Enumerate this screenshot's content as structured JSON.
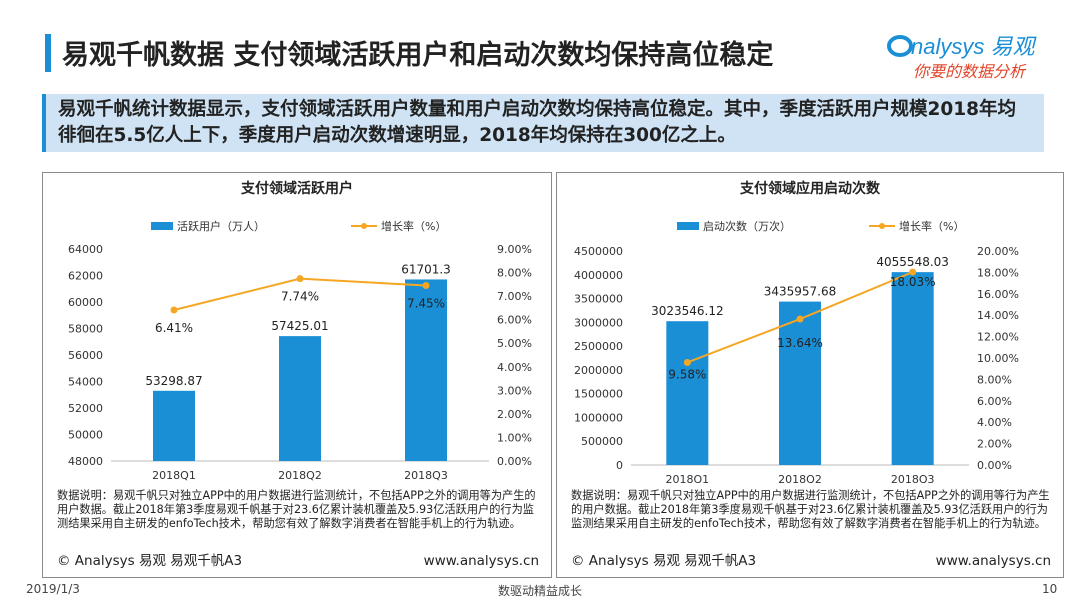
{
  "header": {
    "title": "易观千帆数据  支付领域活跃用户和启动次数均保持高位稳定",
    "logo_text": "nalysys 易观",
    "logo_slogan": "你要的数据分析"
  },
  "summary": "易观千帆统计数据显示，支付领域活跃用户数量和用户启动次数均保持高位稳定。其中，季度活跃用户规模2018年均徘徊在5.5亿人上下，季度用户启动次数增速明显，2018年均保持在300亿之上。",
  "colors": {
    "bar": "#1a8fd6",
    "line": "#f5a623",
    "accent": "#1a8fd6"
  },
  "chart_data": [
    {
      "type": "bar",
      "title": "支付领域活跃用户",
      "categories": [
        "2018Q1",
        "2018Q2",
        "2018Q3"
      ],
      "series": [
        {
          "name": "活跃用户（万人）",
          "type": "bar",
          "axis": "left",
          "values": [
            53298.87,
            57425.01,
            61701.3
          ]
        },
        {
          "name": "增长率（%）",
          "type": "line",
          "axis": "right",
          "values": [
            6.41,
            7.74,
            7.45
          ]
        }
      ],
      "value_labels": [
        "53298.87",
        "57425.01",
        "61701.3"
      ],
      "rate_labels": [
        "6.41%",
        "7.74%",
        "7.45%"
      ],
      "ylim": [
        48000,
        64000
      ],
      "yticks": [
        "64000",
        "62000",
        "60000",
        "58000",
        "56000",
        "54000",
        "52000",
        "50000",
        "48000"
      ],
      "y2lim": [
        0,
        9
      ],
      "y2ticks": [
        "9.00%",
        "8.00%",
        "7.00%",
        "6.00%",
        "5.00%",
        "4.00%",
        "3.00%",
        "2.00%",
        "1.00%",
        "0.00%"
      ],
      "legend_position": "top",
      "note": "数据说明：易观千帆只对独立APP中的用户数据进行监测统计，不包括APP之外的调用等为产生的用户数据。截止2018年第3季度易观千帆基于对23.6亿累计装机覆盖及5.93亿活跃用户的行为监测结果采用自主研发的enfoTech技术，帮助您有效了解数字消费者在智能手机上的行为轨迹。",
      "footer_left": "© Analysys 易观 易观千帆A3",
      "footer_right": "www.analysys.cn"
    },
    {
      "type": "bar",
      "title": "支付领域应用启动次数",
      "categories": [
        "2018Q1",
        "2018Q2",
        "2018Q3"
      ],
      "series": [
        {
          "name": "启动次数（万次）",
          "type": "bar",
          "axis": "left",
          "values": [
            3023546.12,
            3435957.68,
            4055548.03
          ]
        },
        {
          "name": "增长率（%）",
          "type": "line",
          "axis": "right",
          "values": [
            9.58,
            13.64,
            18.03
          ]
        }
      ],
      "value_labels": [
        "3023546.12",
        "3435957.68",
        "4055548.03"
      ],
      "rate_labels": [
        "9.58%",
        "13.64%",
        "18.03%"
      ],
      "ylim": [
        0,
        4500000
      ],
      "yticks": [
        "4500000",
        "4000000",
        "3500000",
        "3000000",
        "2500000",
        "2000000",
        "1500000",
        "1000000",
        "500000",
        "0"
      ],
      "y2lim": [
        0,
        20
      ],
      "y2ticks": [
        "20.00%",
        "18.00%",
        "16.00%",
        "14.00%",
        "12.00%",
        "10.00%",
        "8.00%",
        "6.00%",
        "4.00%",
        "2.00%",
        "0.00%"
      ],
      "legend_position": "top",
      "note": "数据说明：易观千帆只对独立APP中的用户数据进行监测统计，不包括APP之外的调用等行为产生的用户数据。截止2018年第3季度易观千帆基于对23.6亿累计装机覆盖及5.93亿活跃用户的行为监测结果采用自主研发的enfoTech技术，帮助您有效了解数字消费者在智能手机上的行为轨迹。",
      "footer_left": "© Analysys 易观 易观千帆A3",
      "footer_right": "www.analysys.cn"
    }
  ],
  "page_footer": {
    "date": "2019/1/3",
    "slogan": "数驱动精益成长",
    "page": "10"
  }
}
